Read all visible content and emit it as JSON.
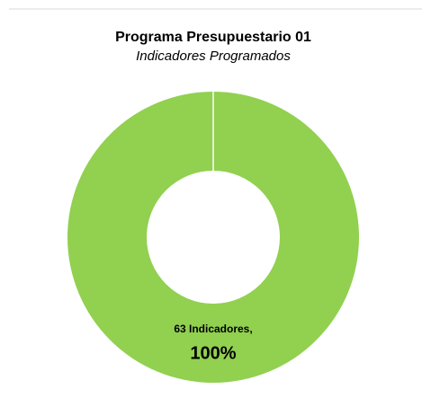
{
  "chart_data": {
    "type": "donut",
    "title": "Programa Presupuestario 01",
    "subtitle": "Indicadores Programados",
    "values": [
      63
    ],
    "value_labels": [
      "63 Indicadores,"
    ],
    "percentages": [
      100
    ],
    "percentage_labels": [
      "100%"
    ],
    "colors": [
      "#92d050"
    ]
  }
}
